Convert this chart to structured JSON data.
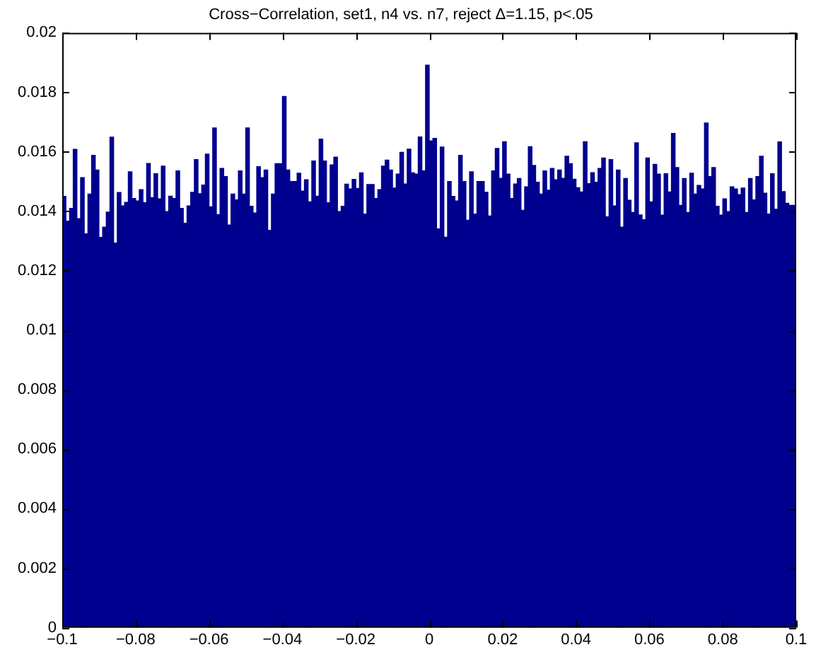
{
  "chart_data": {
    "type": "histogram",
    "title": "Cross−Correlation, set1, n4 vs. n7, reject Δ=1.15, p<.05",
    "color": "#00008f",
    "grid": false,
    "xlim": [
      -0.1,
      0.1
    ],
    "xticks": [
      {
        "value": -0.1,
        "label": "−0.1"
      },
      {
        "value": -0.08,
        "label": "−0.08"
      },
      {
        "value": -0.06,
        "label": "−0.06"
      },
      {
        "value": -0.04,
        "label": "−0.04"
      },
      {
        "value": -0.02,
        "label": "−0.02"
      },
      0,
      0.02,
      0.04,
      0.06,
      0.08,
      0.1
    ],
    "ylim": [
      0,
      0.02
    ],
    "yticks": [
      0,
      0.002,
      0.004,
      0.006,
      0.008,
      0.01,
      0.012,
      0.014,
      0.016,
      0.018,
      0.02
    ],
    "bins": [
      -0.1,
      -0.099,
      -0.098,
      -0.097,
      -0.096,
      -0.095,
      -0.094,
      -0.093,
      -0.092,
      -0.091,
      -0.09,
      -0.089,
      -0.088,
      -0.087,
      -0.086,
      -0.085,
      -0.084,
      -0.083,
      -0.082,
      -0.081,
      -0.08,
      -0.079,
      -0.078,
      -0.077,
      -0.076,
      -0.075,
      -0.074,
      -0.073,
      -0.072,
      -0.071,
      -0.07,
      -0.069,
      -0.068,
      -0.067,
      -0.066,
      -0.065,
      -0.064,
      -0.063,
      -0.062,
      -0.061,
      -0.06,
      -0.059,
      -0.058,
      -0.057,
      -0.056,
      -0.055,
      -0.054,
      -0.053,
      -0.052,
      -0.051,
      -0.05,
      -0.049,
      -0.048,
      -0.047,
      -0.046,
      -0.045,
      -0.044,
      -0.043,
      -0.042,
      -0.041,
      -0.04,
      -0.039,
      -0.038,
      -0.037,
      -0.036,
      -0.035,
      -0.034,
      -0.033,
      -0.032,
      -0.031,
      -0.03,
      -0.029,
      -0.028,
      -0.027,
      -0.026,
      -0.025,
      -0.024,
      -0.023,
      -0.022,
      -0.021,
      -0.02,
      -0.019,
      -0.018,
      -0.017,
      -0.016,
      -0.015,
      -0.014,
      -0.013,
      -0.012,
      -0.011,
      -0.01,
      -0.009,
      -0.008,
      -0.007,
      -0.006,
      -0.005,
      -0.004,
      -0.003,
      -0.002,
      -0.001,
      0,
      0.001,
      0.002,
      0.003,
      0.004,
      0.005,
      0.006,
      0.007,
      0.008,
      0.009,
      0.01,
      0.011,
      0.012,
      0.013,
      0.014,
      0.015,
      0.016,
      0.017,
      0.018,
      0.019,
      0.02,
      0.021,
      0.022,
      0.023,
      0.024,
      0.025,
      0.026,
      0.027,
      0.028,
      0.029,
      0.03,
      0.031,
      0.032,
      0.033,
      0.034,
      0.035,
      0.036,
      0.037,
      0.038,
      0.039,
      0.04,
      0.041,
      0.042,
      0.043,
      0.044,
      0.045,
      0.046,
      0.047,
      0.048,
      0.049,
      0.05,
      0.051,
      0.052,
      0.053,
      0.054,
      0.055,
      0.056,
      0.057,
      0.058,
      0.059,
      0.06,
      0.061,
      0.062,
      0.063,
      0.064,
      0.065,
      0.066,
      0.067,
      0.068,
      0.069,
      0.07,
      0.071,
      0.072,
      0.073,
      0.074,
      0.075,
      0.076,
      0.077,
      0.078,
      0.079,
      0.08,
      0.081,
      0.082,
      0.083,
      0.084,
      0.085,
      0.086,
      0.087,
      0.088,
      0.089,
      0.09,
      0.091,
      0.092,
      0.093,
      0.094,
      0.095,
      0.096,
      0.097,
      0.098,
      0.099,
      0.1
    ],
    "values": [
      0.0145,
      0.01367,
      0.0141,
      0.01608,
      0.01375,
      0.01513,
      0.01324,
      0.01458,
      0.01588,
      0.01539,
      0.01312,
      0.01347,
      0.01397,
      0.01649,
      0.01293,
      0.01463,
      0.01418,
      0.0143,
      0.01533,
      0.01443,
      0.01435,
      0.01473,
      0.01429,
      0.01561,
      0.01446,
      0.01526,
      0.01442,
      0.01552,
      0.01399,
      0.01451,
      0.01443,
      0.01536,
      0.0141,
      0.0136,
      0.01418,
      0.01464,
      0.01574,
      0.01459,
      0.01488,
      0.01592,
      0.01415,
      0.0168,
      0.01389,
      0.01544,
      0.01517,
      0.01354,
      0.01458,
      0.01438,
      0.01536,
      0.01458,
      0.0168,
      0.01417,
      0.01394,
      0.0155,
      0.01513,
      0.01539,
      0.01336,
      0.01458,
      0.0156,
      0.0156,
      0.01786,
      0.01539,
      0.015,
      0.015,
      0.01528,
      0.01468,
      0.01506,
      0.01432,
      0.01569,
      0.01451,
      0.01643,
      0.01569,
      0.01429,
      0.01556,
      0.01582,
      0.01399,
      0.01417,
      0.01491,
      0.01475,
      0.01507,
      0.01477,
      0.01529,
      0.01391,
      0.0149,
      0.0149,
      0.01443,
      0.01473,
      0.01552,
      0.01572,
      0.01539,
      0.01478,
      0.01525,
      0.01598,
      0.01492,
      0.01609,
      0.01529,
      0.01525,
      0.0165,
      0.01536,
      0.01891,
      0.01637,
      0.01645,
      0.01341,
      0.01616,
      0.01313,
      0.015,
      0.0145,
      0.01435,
      0.01588,
      0.015,
      0.0137,
      0.01533,
      0.01391,
      0.015,
      0.015,
      0.01464,
      0.01384,
      0.01536,
      0.01611,
      0.01511,
      0.01634,
      0.01525,
      0.01443,
      0.01492,
      0.0151,
      0.01403,
      0.01482,
      0.01617,
      0.01554,
      0.01498,
      0.01458,
      0.01536,
      0.01471,
      0.01544,
      0.01506,
      0.01539,
      0.01511,
      0.01585,
      0.0156,
      0.01508,
      0.01479,
      0.01465,
      0.01634,
      0.01493,
      0.0153,
      0.01498,
      0.01544,
      0.01579,
      0.01381,
      0.01574,
      0.01418,
      0.01539,
      0.01347,
      0.0151,
      0.01437,
      0.01396,
      0.0163,
      0.01388,
      0.01372,
      0.01579,
      0.01432,
      0.01558,
      0.01525,
      0.01387,
      0.01526,
      0.01465,
      0.01662,
      0.01547,
      0.0142,
      0.0151,
      0.01396,
      0.01528,
      0.01458,
      0.01487,
      0.01475,
      0.01697,
      0.01517,
      0.01547,
      0.01417,
      0.01387,
      0.01442,
      0.01399,
      0.01482,
      0.01475,
      0.01456,
      0.01478,
      0.01396,
      0.0151,
      0.01438,
      0.01517,
      0.01585,
      0.01461,
      0.01391,
      0.01526,
      0.01407,
      0.01633,
      0.01466,
      0.01427,
      0.0142,
      0.0142
    ]
  }
}
